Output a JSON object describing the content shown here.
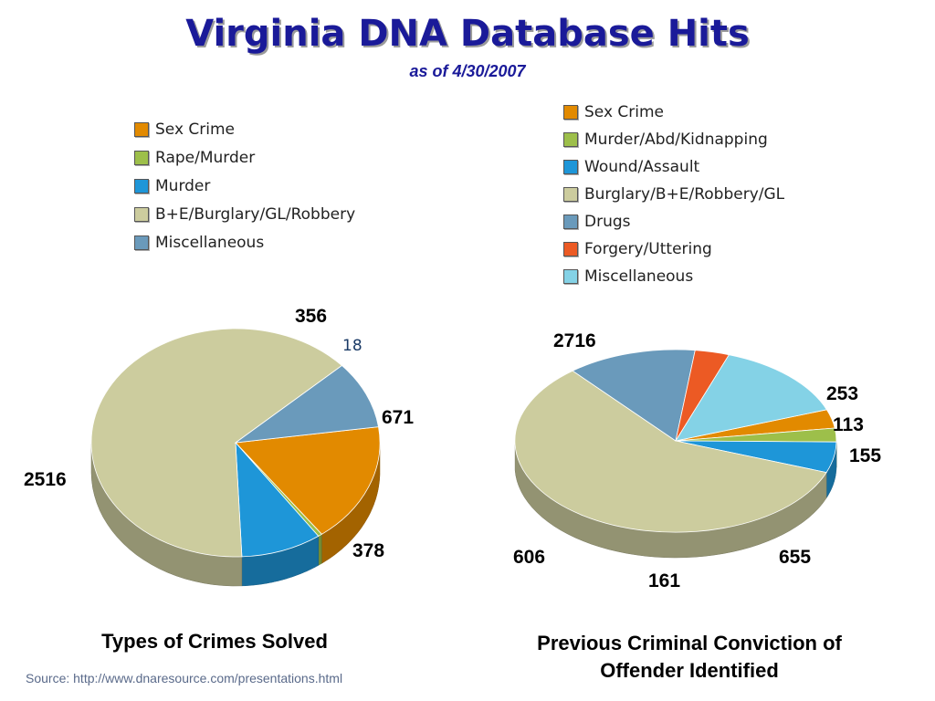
{
  "title": "Virginia DNA Database Hits",
  "subtitle": "as of 4/30/2007",
  "source": "Source: http://www.dnaresource.com/presentations.html",
  "chart_data": [
    {
      "type": "pie",
      "caption": "Types of Crimes Solved",
      "legend": [
        "Sex Crime",
        "Rape/Murder",
        "Murder",
        "B+E/Burglary/GL/Robbery",
        "Miscellaneous"
      ],
      "slices": [
        {
          "label": "Sex Crime",
          "value": 671,
          "color": "#e28a00"
        },
        {
          "label": "Rape/Murder",
          "value": 18,
          "color": "#9dbf4a"
        },
        {
          "label": "Murder",
          "value": 356,
          "color": "#1e96d8"
        },
        {
          "label": "B+E/Burglary/GL/Robbery",
          "value": 2516,
          "color": "#cccc9e"
        },
        {
          "label": "Miscellaneous",
          "value": 378,
          "color": "#6a9abb"
        }
      ]
    },
    {
      "type": "pie",
      "caption": "Previous Criminal Conviction of Offender Identified",
      "legend": [
        "Sex Crime",
        "Murder/Abd/Kidnapping",
        "Wound/Assault",
        "Burglary/B+E/Robbery/GL",
        "Drugs",
        "Forgery/Uttering",
        "Miscellaneous"
      ],
      "slices": [
        {
          "label": "Sex Crime",
          "value": 155,
          "color": "#e28a00"
        },
        {
          "label": "Murder/Abd/Kidnapping",
          "value": 113,
          "color": "#9dbf4a"
        },
        {
          "label": "Wound/Assault",
          "value": 253,
          "color": "#1e96d8"
        },
        {
          "label": "Burglary/B+E/Robbery/GL",
          "value": 2716,
          "color": "#cccc9e"
        },
        {
          "label": "Drugs",
          "value": 606,
          "color": "#6a9abb"
        },
        {
          "label": "Forgery/Uttering",
          "value": 161,
          "color": "#ec5a24"
        },
        {
          "label": "Miscellaneous",
          "value": 655,
          "color": "#84d2e6"
        }
      ]
    }
  ]
}
